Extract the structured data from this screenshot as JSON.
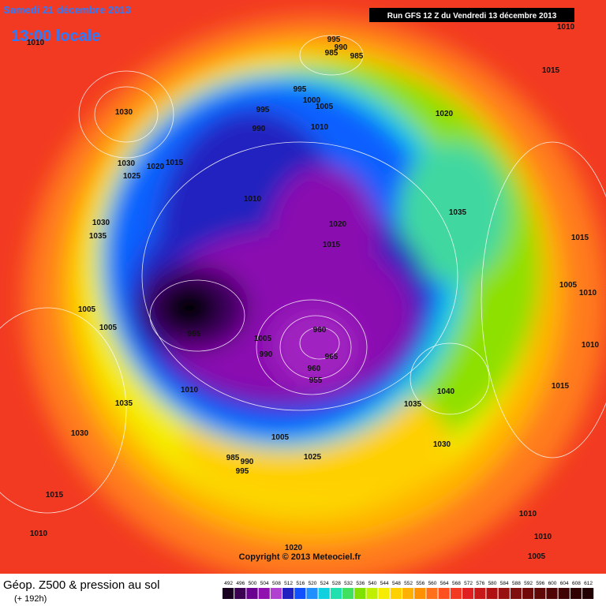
{
  "header": {
    "date": "Samedi 21 décembre 2013",
    "time": "13:00 locale",
    "run": "Run GFS 12 Z du Vendredi 13 décembre 2013"
  },
  "map": {
    "isobar_labels": [
      "1010",
      "995",
      "990",
      "985",
      "985",
      "1010",
      "1030",
      "995",
      "1000",
      "1005",
      "995",
      "990",
      "1010",
      "1020",
      "1015",
      "1030",
      "1020",
      "1015",
      "1025",
      "1010",
      "1035",
      "1030",
      "1035",
      "1020",
      "1015",
      "1015",
      "1005",
      "1010",
      "1005",
      "1005",
      "995",
      "1005",
      "960",
      "990",
      "965",
      "960",
      "955",
      "1010",
      "1040",
      "1015",
      "1035",
      "1035",
      "1010",
      "1030",
      "1005",
      "1030",
      "1025",
      "985",
      "990",
      "995",
      "1015",
      "1010",
      "1010",
      "1010",
      "1020",
      "1005"
    ],
    "copyright": "Copyright © 2013 Meteociel.fr"
  },
  "footer": {
    "title": "Géop. Z500 & pression au sol",
    "lead": "(+ 192h)",
    "legend": [
      492,
      496,
      500,
      504,
      508,
      512,
      516,
      520,
      524,
      528,
      532,
      536,
      540,
      544,
      548,
      552,
      556,
      560,
      564,
      568,
      572,
      576,
      580,
      584,
      588,
      592,
      596,
      600,
      604,
      608,
      612
    ]
  }
}
